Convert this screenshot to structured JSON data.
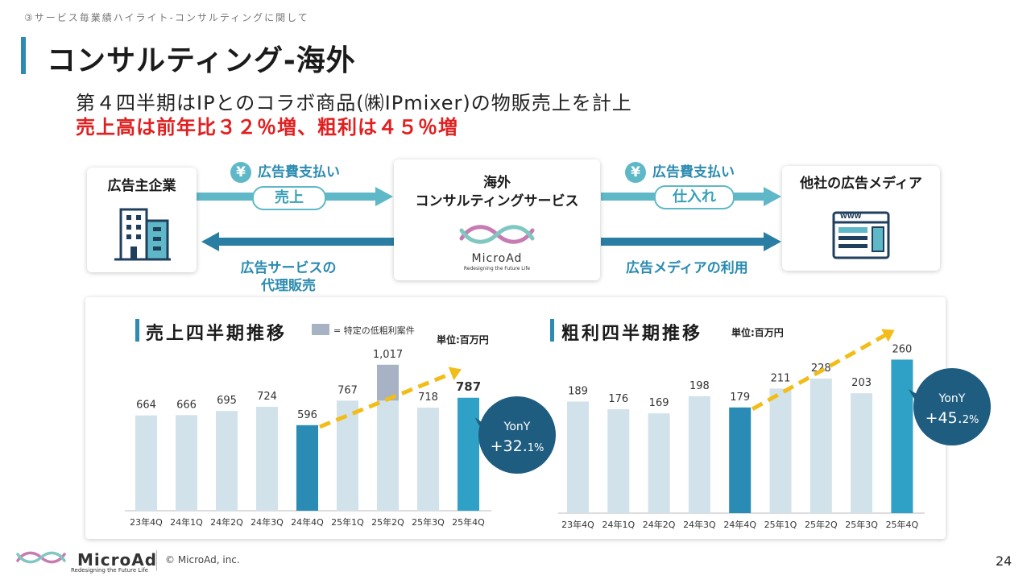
{
  "breadcrumb": "③サービス毎業績ハイライト-コンサルティングに関して",
  "title": "コンサルティング-海外",
  "lead": {
    "line1": "第４四半期はIPとのコラボ商品(㈱IPmixer)の物販売上を計上",
    "line2": "売上高は前年比３２％増、粗利は４５％増"
  },
  "flow": {
    "advertiser": "広告主企業",
    "center_line1": "海外",
    "center_line2": "コンサルティングサービス",
    "media": "他社の広告メディア",
    "yen_symbol": "¥",
    "payment_left": "広告費支払い",
    "payment_right": "広告費支払い",
    "sales_pill": "売上",
    "purchase_pill": "仕入れ",
    "service_line1": "広告サービスの",
    "service_line2": "代理販売",
    "media_use": "広告メディアの利用",
    "center_logo": "MicroAd",
    "center_logo_sub": "Redesigning the Future Life",
    "www": "WWW"
  },
  "chart_data": [
    {
      "type": "bar",
      "title": "売上四半期推移",
      "unit": "単位:百万円",
      "legend": "= 特定の低粗利案件",
      "categories": [
        "23年4Q",
        "24年1Q",
        "24年2Q",
        "24年3Q",
        "24年4Q",
        "25年1Q",
        "25年2Q",
        "25年3Q",
        "25年4Q"
      ],
      "values": [
        664,
        666,
        695,
        724,
        596,
        767,
        1017,
        718,
        787
      ],
      "value_labels": [
        "664",
        "666",
        "695",
        "724",
        "596",
        "767",
        "1,017",
        "718",
        "787"
      ],
      "low_margin_index": 6,
      "low_margin_base": 767,
      "highlight_indices": [
        4,
        8
      ],
      "yoy": {
        "label": "YonY",
        "value": "+32.",
        "suffix": "1%"
      },
      "ylim": [
        0,
        1100
      ],
      "colors": {
        "normal": "#d2e2ea",
        "highlight_past": "#2a8bb4",
        "highlight_current": "#2fa0c6",
        "low_margin": "#a7b3c4",
        "arrow": "#f2bd19",
        "yoy_circle": "#1f5d80"
      }
    },
    {
      "type": "bar",
      "title": "粗利四半期推移",
      "unit": "単位:百万円",
      "categories": [
        "23年4Q",
        "24年1Q",
        "24年2Q",
        "24年3Q",
        "24年4Q",
        "25年1Q",
        "25年2Q",
        "25年3Q",
        "25年4Q"
      ],
      "values": [
        189,
        176,
        169,
        198,
        179,
        211,
        228,
        203,
        260
      ],
      "value_labels": [
        "189",
        "176",
        "169",
        "198",
        "179",
        "211",
        "228",
        "203",
        "260"
      ],
      "highlight_indices": [
        4,
        8
      ],
      "yoy": {
        "label": "YonY",
        "value": "+45.",
        "suffix": "2%"
      },
      "ylim": [
        0,
        270
      ],
      "colors": {
        "normal": "#d2e2ea",
        "highlight_past": "#2a8bb4",
        "highlight_current": "#2fa0c6",
        "arrow": "#f2bd19",
        "yoy_circle": "#1f5d80"
      }
    }
  ],
  "footer": {
    "logo": "MicroAd",
    "logo_sub": "Redesigning the Future Life",
    "copyright": "© MicroAd, inc.",
    "page": "24"
  }
}
